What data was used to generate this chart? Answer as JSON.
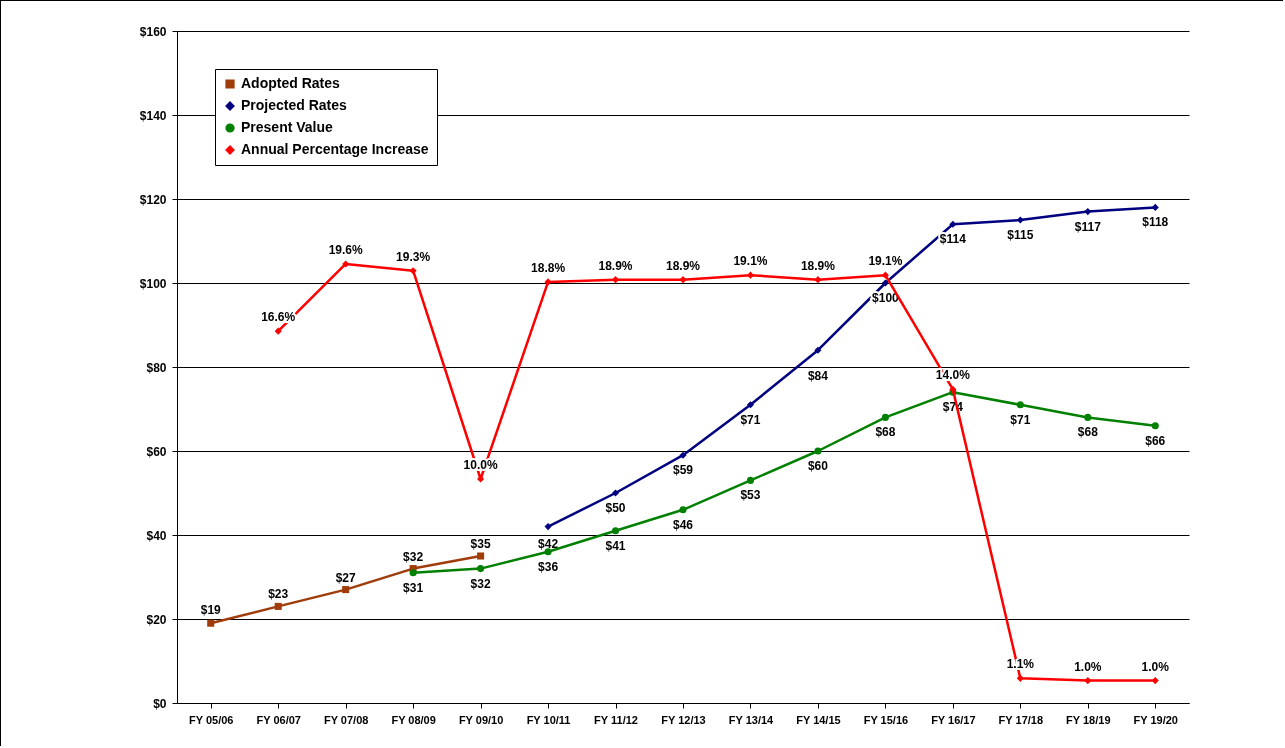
{
  "chart_data": {
    "type": "line",
    "categories": [
      "FY 05/06",
      "FY 06/07",
      "FY 07/08",
      "FY 08/09",
      "FY 09/10",
      "FY 10/11",
      "FY 11/12",
      "FY 12/13",
      "FY 13/14",
      "FY 14/15",
      "FY 15/16",
      "FY 16/17",
      "FY 17/18",
      "FY 18/19",
      "FY 19/20"
    ],
    "ylim": [
      0,
      160
    ],
    "yticks": [
      {
        "value": 0,
        "label": "$0"
      },
      {
        "value": 20,
        "label": "$20"
      },
      {
        "value": 40,
        "label": "$40"
      },
      {
        "value": 60,
        "label": "$60"
      },
      {
        "value": 80,
        "label": "$80"
      },
      {
        "value": 100,
        "label": "$100"
      },
      {
        "value": 120,
        "label": "$120"
      },
      {
        "value": 140,
        "label": "$140"
      },
      {
        "value": 160,
        "label": "$160"
      }
    ],
    "y2lim": [
      0,
      30
    ],
    "grid": "y",
    "legend": "top left",
    "series": [
      {
        "name": "Adopted Rates",
        "color": "#a03c0a",
        "marker": "square",
        "values": [
          19,
          23,
          27,
          32,
          35,
          null,
          null,
          null,
          null,
          null,
          null,
          null,
          null,
          null,
          null
        ],
        "value_labels": [
          "$19",
          "$23",
          "$27",
          "$32",
          "$35",
          null,
          null,
          null,
          null,
          null,
          null,
          null,
          null,
          null,
          null
        ]
      },
      {
        "name": "Projected Rates",
        "color": "#000080",
        "marker": "diamond",
        "values": [
          null,
          null,
          null,
          null,
          null,
          42,
          50,
          59,
          71,
          84,
          100,
          114,
          115,
          117,
          118
        ],
        "value_labels": [
          null,
          null,
          null,
          null,
          null,
          "$42",
          "$50",
          "$59",
          "$71",
          "$84",
          "$100",
          "$114",
          "$115",
          "$117",
          "$118"
        ]
      },
      {
        "name": "Present Value",
        "color": "#008000",
        "marker": "circle",
        "values": [
          null,
          null,
          null,
          31,
          32,
          36,
          41,
          46,
          53,
          60,
          68,
          74,
          71,
          68,
          66
        ],
        "value_labels": [
          null,
          null,
          null,
          "$31",
          "$32",
          "$36",
          "$41",
          "$46",
          "$53",
          "$60",
          "$68",
          "$74",
          "$71",
          "$68",
          "$66"
        ]
      },
      {
        "name": "Annual Percentage Increase",
        "color": "#ff0000",
        "marker": "diamond",
        "axis": "y2",
        "values": [
          null,
          16.6,
          19.6,
          19.3,
          10.0,
          18.8,
          18.9,
          18.9,
          19.1,
          18.9,
          19.1,
          14.0,
          1.1,
          1.0,
          1.0
        ],
        "value_labels": [
          null,
          "16.6%",
          "19.6%",
          "19.3%",
          "10.0%",
          "18.8%",
          "18.9%",
          "18.9%",
          "19.1%",
          "18.9%",
          "19.1%",
          "14.0%",
          "1.1%",
          "1.0%",
          "1.0%"
        ]
      }
    ]
  }
}
